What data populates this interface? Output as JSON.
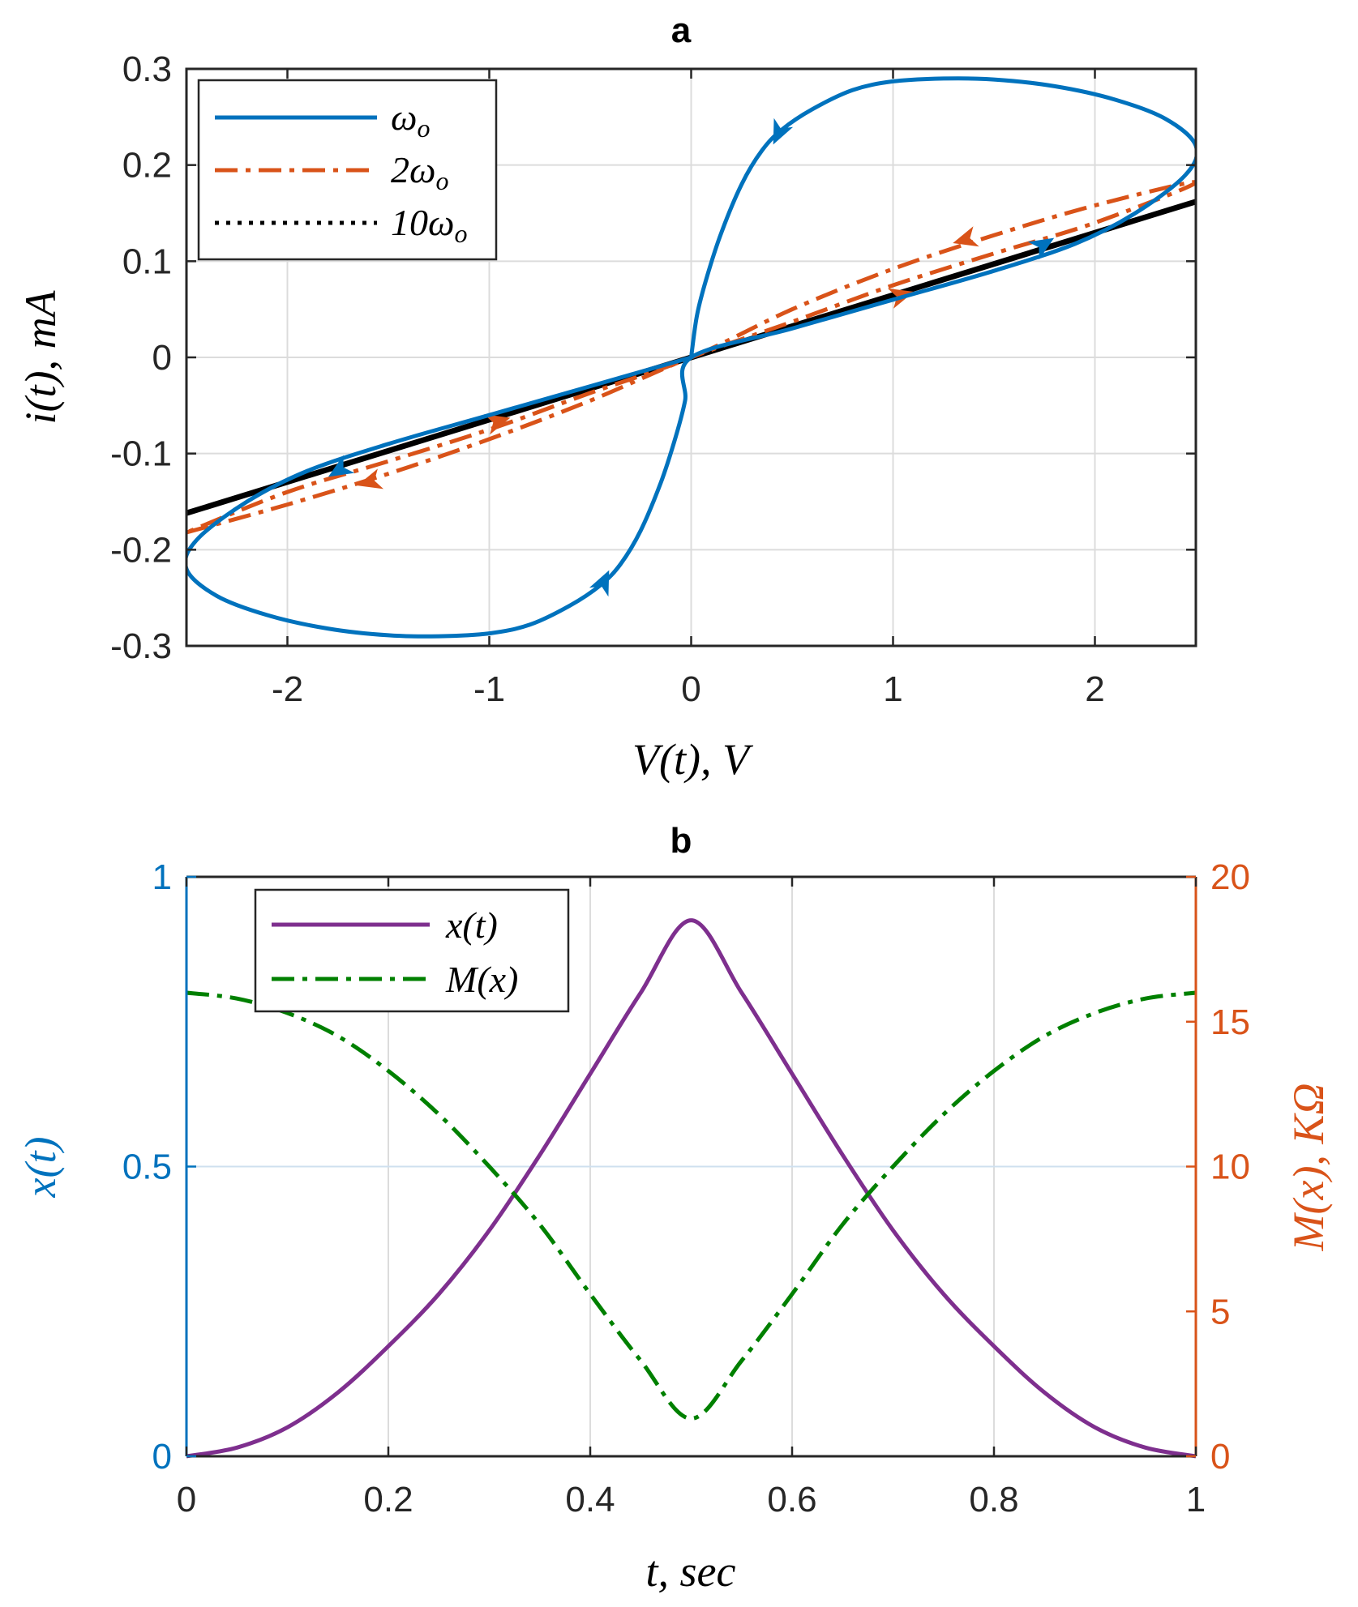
{
  "chart_data": [
    {
      "id": "a",
      "type": "line",
      "title": "a",
      "xlabel": "V(t),  V",
      "ylabel": "i(t),  mA",
      "xlim": [
        -2.5,
        2.5
      ],
      "ylim": [
        -0.3,
        0.3
      ],
      "xticks": [
        -2,
        -1,
        0,
        1,
        2
      ],
      "xtick_labels": [
        "-2",
        "-1",
        "0",
        "1",
        "2"
      ],
      "yticks": [
        -0.3,
        -0.2,
        -0.1,
        0,
        0.1,
        0.2,
        0.3
      ],
      "ytick_labels": [
        "-0.3",
        "-0.2",
        "-0.1",
        "0",
        "0.1",
        "0.2",
        "0.3"
      ],
      "grid": true,
      "legend_position": "top-left",
      "series": [
        {
          "name": "ω_o",
          "legend_main": "ω",
          "legend_sub": "o",
          "legend_prefix": "",
          "color": "#0072BD",
          "style": "solid",
          "description": "pinched hysteresis loop",
          "x": [
            0,
            0.03,
            0.08,
            0.15,
            0.25,
            0.35,
            0.45,
            0.6,
            0.8,
            1.0,
            1.25,
            1.5,
            1.8,
            2.1,
            2.35,
            2.5,
            2.45,
            2.2,
            1.9,
            1.5,
            1.0,
            0.5,
            0,
            -0.03,
            -0.08,
            -0.15,
            -0.25,
            -0.35,
            -0.45,
            -0.6,
            -0.8,
            -1.0,
            -1.25,
            -1.5,
            -1.8,
            -2.1,
            -2.35,
            -2.5,
            -2.45,
            -2.2,
            -1.9,
            -1.5,
            -1.0,
            -0.5,
            0
          ],
          "y": [
            0,
            0.045,
            0.085,
            0.13,
            0.18,
            0.215,
            0.237,
            0.258,
            0.278,
            0.287,
            0.29,
            0.289,
            0.282,
            0.268,
            0.248,
            0.22,
            0.19,
            0.15,
            0.118,
            0.09,
            0.06,
            0.03,
            0,
            -0.045,
            -0.085,
            -0.13,
            -0.18,
            -0.215,
            -0.237,
            -0.258,
            -0.278,
            -0.287,
            -0.29,
            -0.289,
            -0.282,
            -0.268,
            -0.248,
            -0.22,
            -0.19,
            -0.15,
            -0.118,
            -0.09,
            -0.06,
            -0.03,
            0
          ],
          "arrows": [
            {
              "x": 0.43,
              "y": 0.232,
              "dx": -1,
              "dy": -0.45
            },
            {
              "x": 1.75,
              "y": 0.118,
              "dx": 1,
              "dy": 0.13
            },
            {
              "x": -0.43,
              "y": -0.232,
              "dx": 1,
              "dy": 0.45
            },
            {
              "x": -1.75,
              "y": -0.118,
              "dx": -1,
              "dy": -0.13
            }
          ]
        },
        {
          "name": "2ω_o",
          "legend_main": "ω",
          "legend_sub": "o",
          "legend_prefix": "2",
          "color": "#D95319",
          "style": "dashdot",
          "description": "narrow loop",
          "x": [
            -2.5,
            -2.0,
            -1.5,
            -1.0,
            -0.5,
            0,
            0.5,
            1.0,
            1.5,
            2.0,
            2.5,
            2.0,
            1.5,
            1.0,
            0.5,
            0,
            -0.5,
            -1.0,
            -1.5,
            -2.0,
            -2.5
          ],
          "y": [
            -0.182,
            -0.153,
            -0.121,
            -0.085,
            -0.045,
            0,
            0.037,
            0.075,
            0.108,
            0.14,
            0.182,
            0.158,
            0.127,
            0.092,
            0.05,
            0,
            -0.037,
            -0.075,
            -0.108,
            -0.14,
            -0.182
          ],
          "arrows": [
            {
              "x": 1.05,
              "y": 0.065,
              "dx": 1,
              "dy": 0.06
            },
            {
              "x": -1.6,
              "y": -0.13,
              "dx": -1,
              "dy": -0.06
            },
            {
              "x": -0.95,
              "y": -0.066,
              "dx": 1,
              "dy": 0.06
            },
            {
              "x": 1.35,
              "y": 0.122,
              "dx": -1,
              "dy": -0.06
            }
          ]
        },
        {
          "name": "10ω_o",
          "legend_main": "ω",
          "legend_sub": "o",
          "legend_prefix": "10",
          "color": "#000000",
          "style": "dotted",
          "description": "nearly linear",
          "x": [
            -2.5,
            2.5
          ],
          "y": [
            -0.162,
            0.162
          ],
          "arrows": []
        }
      ]
    },
    {
      "id": "b",
      "type": "line",
      "title": "b",
      "xlabel": "t,  sec",
      "ylabel_left": "x(t)",
      "ylabel_right": "M(x),  KΩ",
      "xlim": [
        0,
        1
      ],
      "ylim_left": [
        0,
        1
      ],
      "ylim_right": [
        0,
        20
      ],
      "xticks": [
        0,
        0.2,
        0.4,
        0.6,
        0.8,
        1
      ],
      "xtick_labels": [
        "0",
        "0.2",
        "0.4",
        "0.6",
        "0.8",
        "1"
      ],
      "yticks_left": [
        0,
        0.5,
        1
      ],
      "ytick_labels_left": [
        "0",
        "0.5",
        "1"
      ],
      "yticks_right": [
        0,
        5,
        10,
        15,
        20
      ],
      "ytick_labels_right": [
        "0",
        "5",
        "10",
        "15",
        "20"
      ],
      "left_axis_color": "#0072BD",
      "right_axis_color": "#D95319",
      "grid": true,
      "legend_position": "top-left",
      "series": [
        {
          "name": "x(t)",
          "axis": "left",
          "color": "#7E2F8E",
          "style": "solid",
          "x": [
            0,
            0.05,
            0.1,
            0.15,
            0.2,
            0.25,
            0.3,
            0.35,
            0.4,
            0.45,
            0.5,
            0.55,
            0.6,
            0.65,
            0.7,
            0.75,
            0.8,
            0.85,
            0.9,
            0.95,
            1.0
          ],
          "y": [
            0,
            0.015,
            0.05,
            0.11,
            0.19,
            0.28,
            0.39,
            0.52,
            0.66,
            0.8,
            0.925,
            0.8,
            0.66,
            0.52,
            0.39,
            0.28,
            0.19,
            0.11,
            0.05,
            0.015,
            0
          ]
        },
        {
          "name": "M(x)",
          "axis": "right",
          "color": "#008000",
          "style": "dashdot",
          "x": [
            0,
            0.05,
            0.1,
            0.15,
            0.2,
            0.25,
            0.3,
            0.35,
            0.4,
            0.45,
            0.5,
            0.55,
            0.6,
            0.65,
            0.7,
            0.75,
            0.8,
            0.85,
            0.9,
            0.95,
            1.0
          ],
          "y": [
            16.0,
            15.8,
            15.3,
            14.5,
            13.3,
            11.8,
            10.0,
            8.0,
            5.6,
            3.3,
            1.3,
            3.3,
            5.6,
            8.0,
            10.0,
            11.8,
            13.3,
            14.5,
            15.3,
            15.8,
            16.0
          ]
        }
      ]
    }
  ]
}
